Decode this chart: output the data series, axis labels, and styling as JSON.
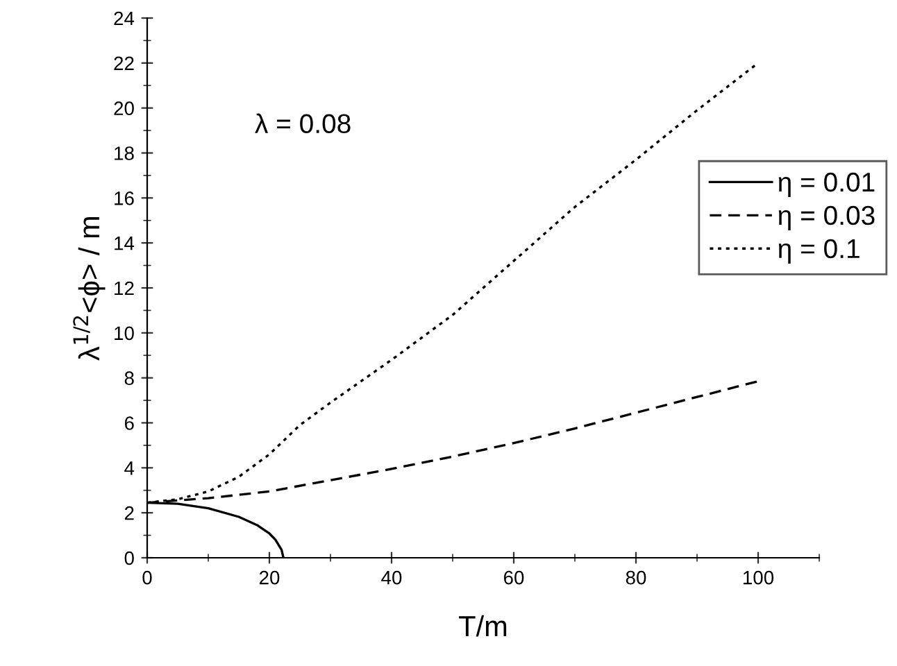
{
  "chart_data": {
    "type": "line",
    "xlabel": "T/m",
    "ylabel": "λ$^{1/2}$<ϕ> / m",
    "annotations": [
      "λ = 0.08"
    ],
    "xlim": [
      0,
      110
    ],
    "xticks": [
      0,
      20,
      40,
      60,
      80,
      100
    ],
    "ylim": [
      0,
      24
    ],
    "yticks": [
      0,
      2,
      4,
      6,
      8,
      10,
      12,
      14,
      16,
      18,
      20,
      22,
      24
    ],
    "grid": false,
    "legend": "right",
    "marker": "none",
    "series": [
      {
        "name": "η = 0.01",
        "color": "#000000",
        "line_style": "solid",
        "x": [
          0,
          5,
          10,
          15,
          18,
          20,
          21,
          22,
          22.3
        ],
        "values": [
          2.45,
          2.4,
          2.2,
          1.82,
          1.45,
          1.08,
          0.8,
          0.35,
          0
        ]
      },
      {
        "name": "η = 0.03",
        "color": "#000000",
        "line_style": "dashed",
        "x": [
          0,
          10,
          20,
          30,
          40,
          50,
          60,
          70,
          80,
          90,
          100
        ],
        "values": [
          2.45,
          2.65,
          2.95,
          3.45,
          3.95,
          4.5,
          5.1,
          5.75,
          6.45,
          7.15,
          7.85
        ]
      },
      {
        "name": "η = 0.1",
        "color": "#000000",
        "line_style": "dotted",
        "x": [
          0,
          5,
          10,
          15,
          20,
          25,
          30,
          40,
          50,
          60,
          70,
          80,
          90,
          100
        ],
        "values": [
          2.45,
          2.6,
          2.95,
          3.6,
          4.6,
          5.9,
          6.9,
          8.8,
          10.8,
          13.2,
          15.6,
          17.7,
          19.9,
          22.0
        ]
      }
    ]
  }
}
